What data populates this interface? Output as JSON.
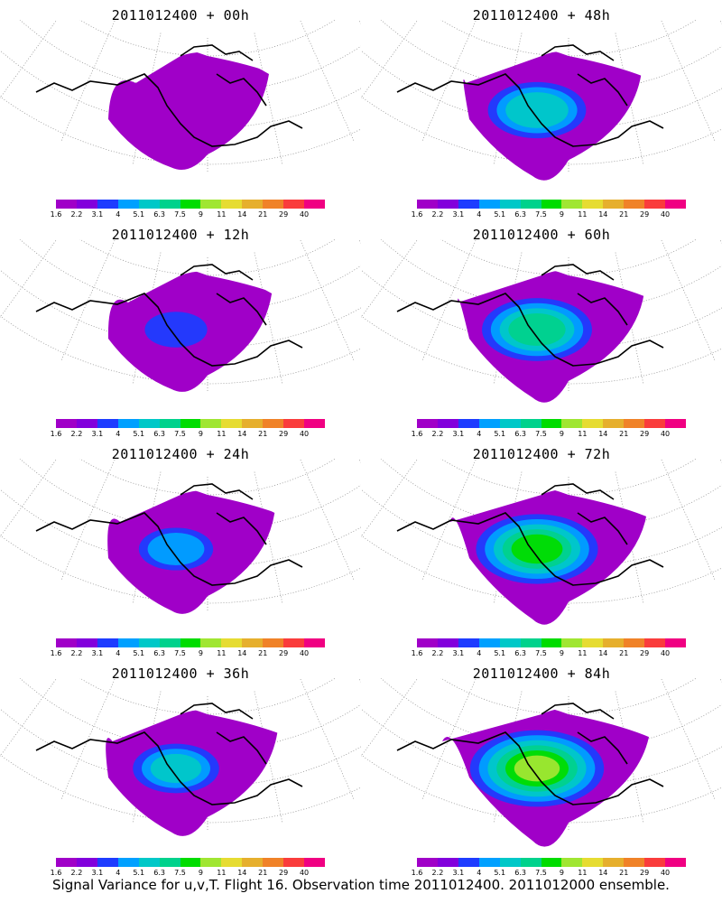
{
  "panels": [
    {
      "title": "2011012400 + 00h",
      "lead": 0
    },
    {
      "title": "2011012400 + 48h",
      "lead": 48
    },
    {
      "title": "2011012400 + 12h",
      "lead": 12
    },
    {
      "title": "2011012400 + 60h",
      "lead": 60
    },
    {
      "title": "2011012400 + 24h",
      "lead": 24
    },
    {
      "title": "2011012400 + 72h",
      "lead": 72
    },
    {
      "title": "2011012400 + 36h",
      "lead": 36
    },
    {
      "title": "2011012400 + 84h",
      "lead": 84
    }
  ],
  "colorbar": {
    "labels": [
      "1.6",
      "2.2",
      "3.1",
      "4",
      "5.1",
      "6.3",
      "7.5",
      "9",
      "11",
      "14",
      "21",
      "29",
      "40"
    ],
    "colors": [
      "#a000c8",
      "#8200dc",
      "#1e3cff",
      "#00a0ff",
      "#00c8c8",
      "#00d28c",
      "#00dc00",
      "#a0e632",
      "#e6dc32",
      "#e6af2d",
      "#f08228",
      "#fa3c3c",
      "#f00082"
    ]
  },
  "footer": "Signal Variance for u,v,T. Flight 16. Observation time 2011012400. 2011012000 ensemble."
}
